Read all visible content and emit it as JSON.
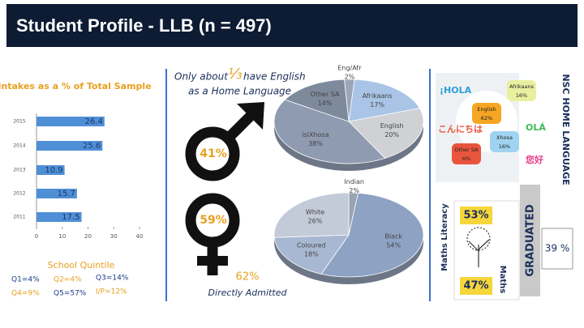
{
  "header": {
    "title": "Student Profile - LLB (n = 497)"
  },
  "chart_data": [
    {
      "type": "bar",
      "orientation": "horizontal",
      "title": "Intakes as a % of Total Sample",
      "categories": [
        "2015",
        "2014",
        "2013",
        "2012",
        "2011"
      ],
      "values": [
        26.4,
        25.6,
        10.9,
        15.7,
        17.5
      ],
      "color": "#4f8fd6",
      "xlim": [
        0,
        40
      ],
      "xticks": [
        0,
        10,
        20,
        30,
        40
      ]
    },
    {
      "type": "pie",
      "title": [
        "Only about",
        "⅓",
        "have English",
        "as a Home Language"
      ],
      "categories": [
        "Eng/Afr",
        "Afrikaans",
        "English",
        "isiXhosa",
        "Other SA"
      ],
      "values": [
        2,
        17,
        20,
        38,
        14
      ],
      "value_labels": [
        "2%",
        "17%",
        "20%",
        "38%",
        "14%"
      ],
      "colors": [
        "#9aa6b8",
        "#a9c4e6",
        "#cfd1d4",
        "#8e9bb0",
        "#7d8a9c"
      ]
    },
    {
      "type": "pie",
      "categories": [
        "Indian",
        "Black",
        "Coloured",
        "White"
      ],
      "values": [
        2,
        54,
        18,
        26
      ],
      "value_labels": [
        "2%",
        "54%",
        "18%",
        "26%"
      ],
      "colors": [
        "#9aa3b0",
        "#8ea2c4",
        "#a9b8d2",
        "#c3cad8"
      ]
    }
  ],
  "quintile": {
    "title": "School Quintile",
    "items": [
      "Q1=4%",
      "Q2=4%",
      "Q3=14%",
      "Q4=9%",
      "Q5=57%",
      "I/P=12%"
    ]
  },
  "gender": {
    "male": "41%",
    "female": "59%"
  },
  "admitted": {
    "value": "62%",
    "label": "Directly Admitted"
  },
  "language": {
    "title": "NSC HOME LANGUAGE",
    "items": [
      {
        "label": "Afrikaans",
        "value": "16%"
      },
      {
        "label": "English",
        "value": "62%"
      },
      {
        "label": "Xhosa",
        "value": "16%"
      },
      {
        "label": "Other SA",
        "value": "6%"
      }
    ],
    "greetings": [
      "¡HOLA",
      "OLÁ",
      "こんにちは",
      "您好"
    ]
  },
  "maths": {
    "literacy": {
      "label": "Maths Literacy",
      "value": "53%"
    },
    "maths": {
      "label": "Maths",
      "value": "47%"
    }
  },
  "graduated": {
    "label": "GRADUATED",
    "value": "39 %"
  }
}
